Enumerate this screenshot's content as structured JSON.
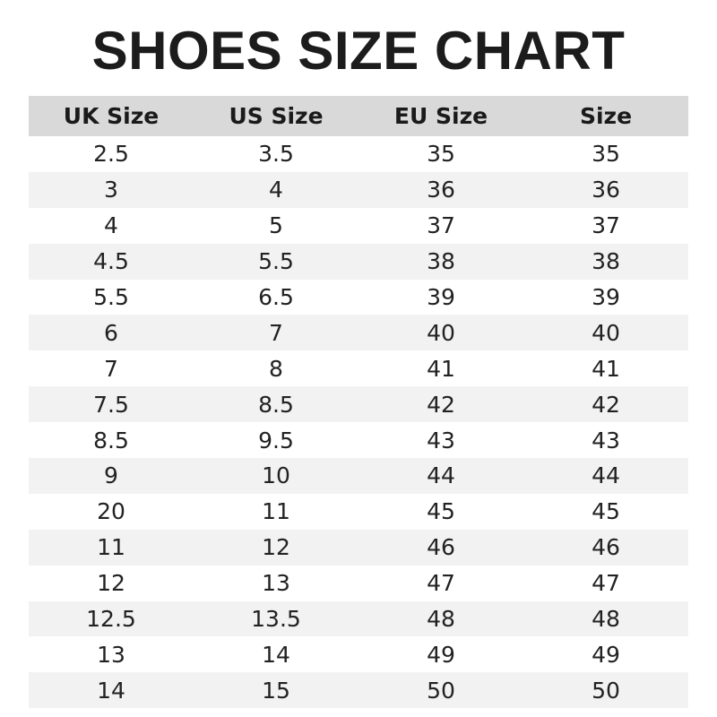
{
  "title": "SHOES SIZE CHART",
  "table": {
    "headers": [
      "UK Size",
      "US Size",
      "EU Size",
      "Size"
    ],
    "rows": [
      [
        "2.5",
        "3.5",
        "35",
        "35"
      ],
      [
        "3",
        "4",
        "36",
        "36"
      ],
      [
        "4",
        "5",
        "37",
        "37"
      ],
      [
        "4.5",
        "5.5",
        "38",
        "38"
      ],
      [
        "5.5",
        "6.5",
        "39",
        "39"
      ],
      [
        "6",
        "7",
        "40",
        "40"
      ],
      [
        "7",
        "8",
        "41",
        "41"
      ],
      [
        "7.5",
        "8.5",
        "42",
        "42"
      ],
      [
        "8.5",
        "9.5",
        "43",
        "43"
      ],
      [
        "9",
        "10",
        "44",
        "44"
      ],
      [
        "20",
        "11",
        "45",
        "45"
      ],
      [
        "11",
        "12",
        "46",
        "46"
      ],
      [
        "12",
        "13",
        "47",
        "47"
      ],
      [
        "12.5",
        "13.5",
        "48",
        "48"
      ],
      [
        "13",
        "14",
        "49",
        "49"
      ],
      [
        "14",
        "15",
        "50",
        "50"
      ]
    ]
  },
  "colors": {
    "header_bg": "#d9d9d9",
    "stripe_bg": "#f2f2f2"
  }
}
